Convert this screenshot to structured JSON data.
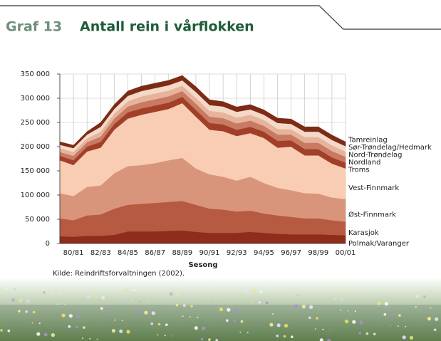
{
  "chart_data": {
    "type": "area",
    "stacked": true,
    "figure_label": "Graf 13",
    "title": "Antall rein i vårflokken",
    "x_label": "Sesong",
    "source": "Kilde: Reindriftsforvaltningen (2002).",
    "grid": true,
    "categories": [
      null,
      "80/81",
      null,
      "82/83",
      null,
      "84/85",
      null,
      "86/87",
      null,
      "88/89",
      null,
      "90/91",
      null,
      "92/93",
      null,
      "94/95",
      null,
      "96/97",
      null,
      "98/99",
      null,
      "00/01"
    ],
    "ylim": [
      0,
      350000
    ],
    "yticks": [
      0,
      {
        "value": 50000,
        "label": "50 000"
      },
      {
        "value": 100000,
        "label": "100 000"
      },
      {
        "value": 150000,
        "label": "150 000"
      },
      {
        "value": 200000,
        "label": "200 000"
      },
      {
        "value": 250000,
        "label": "250 000"
      },
      {
        "value": 300000,
        "label": "300 000"
      },
      {
        "value": 350000,
        "label": "350 000"
      }
    ],
    "series": [
      {
        "name": "Polmak/Varanger",
        "color": "#8e2d1b",
        "values": [
          15000,
          14000,
          16000,
          16000,
          18000,
          25000,
          25000,
          25000,
          26000,
          27000,
          24000,
          22000,
          22000,
          22000,
          24000,
          22000,
          20000,
          19000,
          19000,
          19000,
          18000,
          17000
        ]
      },
      {
        "name": "Karasjok",
        "color": "#b65a42",
        "values": [
          37000,
          34000,
          42000,
          44000,
          54000,
          55000,
          57000,
          59000,
          60000,
          61000,
          56000,
          50000,
          48000,
          44000,
          44000,
          40000,
          38000,
          36000,
          33000,
          33000,
          30000,
          28000
        ]
      },
      {
        "name": "Øst-Finnmark",
        "color": "#d9957b",
        "values": [
          52000,
          50000,
          59000,
          60000,
          73000,
          80000,
          80000,
          82000,
          86000,
          89000,
          75000,
          71000,
          68000,
          64000,
          70000,
          63000,
          57000,
          55000,
          52000,
          51000,
          47000,
          47000
        ]
      },
      {
        "name": "Vest-Finnmark",
        "color": "#f8cdb4",
        "values": [
          68000,
          64000,
          73000,
          78000,
          90000,
          98000,
          104000,
          106000,
          106000,
          113000,
          107000,
          92000,
          94000,
          92000,
          90000,
          93000,
          83000,
          90000,
          78000,
          79000,
          70000,
          63000
        ]
      },
      {
        "name": "Troms",
        "color": "#a23f28",
        "values": [
          9000,
          10000,
          10000,
          12000,
          12000,
          13000,
          13000,
          13000,
          13000,
          13000,
          14000,
          14000,
          14000,
          13000,
          13000,
          13000,
          14000,
          13000,
          13000,
          13000,
          13000,
          12000
        ]
      },
      {
        "name": "Nordland",
        "color": "#c87a63",
        "values": [
          8000,
          9000,
          9000,
          11000,
          11000,
          12000,
          13000,
          13000,
          13000,
          12000,
          13000,
          13000,
          13000,
          13000,
          13000,
          12000,
          13000,
          12000,
          13000,
          13000,
          13000,
          12000
        ]
      },
      {
        "name": "Nord-Trøndelag",
        "color": "#e6b49b",
        "values": [
          8000,
          8000,
          8000,
          10000,
          10000,
          11000,
          12000,
          12000,
          12000,
          11000,
          12000,
          12000,
          12000,
          12000,
          12000,
          12000,
          12000,
          11000,
          12000,
          12000,
          12000,
          11000
        ]
      },
      {
        "name": "Sør-Trøndelag/Hedmark",
        "color": "#f4d9c8",
        "values": [
          7000,
          8000,
          8000,
          10000,
          10000,
          11000,
          11000,
          11000,
          11000,
          11000,
          12000,
          12000,
          12000,
          12000,
          11000,
          11000,
          12000,
          11000,
          11000,
          11000,
          11000,
          11000
        ]
      },
      {
        "name": "Tamreinlag",
        "color": "#7c2b17",
        "values": [
          6000,
          6000,
          6000,
          9000,
          9000,
          10000,
          10000,
          10000,
          10000,
          10000,
          11000,
          11000,
          10000,
          10000,
          10000,
          10000,
          10000,
          10000,
          10000,
          10000,
          10000,
          9000
        ]
      }
    ]
  }
}
